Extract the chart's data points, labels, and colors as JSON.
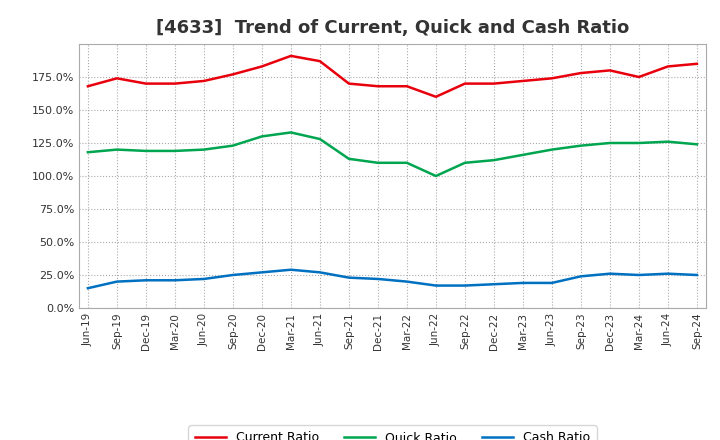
{
  "title": "[4633]  Trend of Current, Quick and Cash Ratio",
  "x_labels": [
    "Jun-19",
    "Sep-19",
    "Dec-19",
    "Mar-20",
    "Jun-20",
    "Sep-20",
    "Dec-20",
    "Mar-21",
    "Jun-21",
    "Sep-21",
    "Dec-21",
    "Mar-22",
    "Jun-22",
    "Sep-22",
    "Dec-22",
    "Mar-23",
    "Jun-23",
    "Sep-23",
    "Dec-23",
    "Mar-24",
    "Jun-24",
    "Sep-24"
  ],
  "current_ratio": [
    168,
    174,
    170,
    170,
    172,
    177,
    183,
    191,
    187,
    170,
    168,
    168,
    160,
    170,
    170,
    172,
    174,
    178,
    180,
    175,
    183,
    185
  ],
  "quick_ratio": [
    118,
    120,
    119,
    119,
    120,
    123,
    130,
    133,
    128,
    113,
    110,
    110,
    100,
    110,
    112,
    116,
    120,
    123,
    125,
    125,
    126,
    124
  ],
  "cash_ratio": [
    15,
    20,
    21,
    21,
    22,
    25,
    27,
    29,
    27,
    23,
    22,
    20,
    17,
    17,
    18,
    19,
    19,
    24,
    26,
    25,
    26,
    25
  ],
  "current_color": "#e8000d",
  "quick_color": "#00a550",
  "cash_color": "#0070c0",
  "bg_color": "#ffffff",
  "plot_bg_color": "#ffffff",
  "grid_color": "#aaaaaa",
  "ylim": [
    0,
    200
  ],
  "yticks": [
    0,
    25,
    50,
    75,
    100,
    125,
    150,
    175
  ],
  "title_fontsize": 13,
  "legend_labels": [
    "Current Ratio",
    "Quick Ratio",
    "Cash Ratio"
  ]
}
